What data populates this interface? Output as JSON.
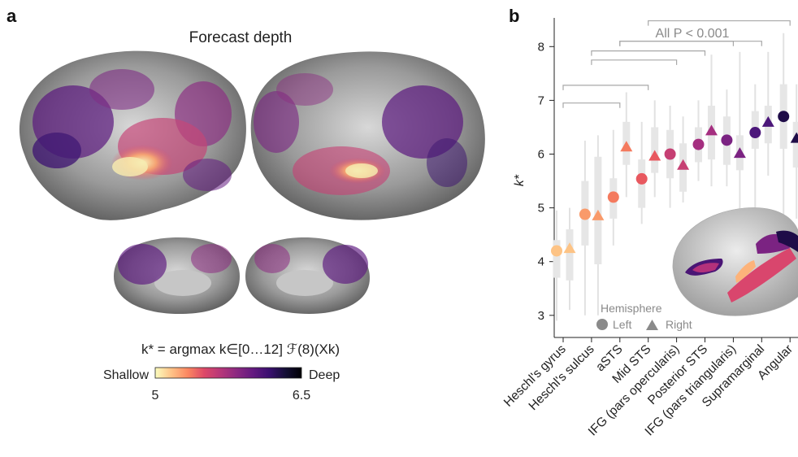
{
  "panel_a": {
    "letter": "a",
    "title": "Forecast depth",
    "formula": "k* = argmax k∈[0…12] ℱ(8)(Xk)",
    "colorbar": {
      "low_label": "Shallow",
      "high_label": "Deep",
      "min": "5",
      "max": "6.5",
      "colormap": [
        "#fcfdbf",
        "#fec287",
        "#fb8761",
        "#de4968",
        "#b73779",
        "#8c2981",
        "#641a80",
        "#3b0f70",
        "#140e36",
        "#000004"
      ]
    }
  },
  "panel_b": {
    "letter": "b",
    "significance_label": "All P < 0.001",
    "legend": {
      "title": "Hemisphere",
      "left_label": "Left",
      "right_label": "Right"
    }
  },
  "chart_data": {
    "type": "scatter",
    "ylabel": "k*",
    "ylim": [
      2.6,
      8.5
    ],
    "yticks": [
      3,
      4,
      5,
      6,
      7,
      8
    ],
    "categories": [
      "Heschl's gyrus",
      "Heschl's sulcus",
      "aSTS",
      "Mid STS",
      "IFG (pars opercularis)",
      "Posterior STS",
      "IFG (pars triangularis)",
      "Supramarginal",
      "Angular"
    ],
    "colors": [
      "#fdc385",
      "#f99a6a",
      "#f47a5e",
      "#e8585f",
      "#c63f73",
      "#a52f80",
      "#7b2382",
      "#4c177a",
      "#1f0c48"
    ],
    "series": [
      {
        "name": "Left",
        "marker": "circle",
        "values": [
          4.2,
          4.88,
          5.2,
          5.54,
          6.0,
          6.18,
          6.26,
          6.4,
          6.7
        ]
      },
      {
        "name": "Right",
        "marker": "triangle",
        "values": [
          4.25,
          4.86,
          6.14,
          5.97,
          5.8,
          6.44,
          6.02,
          6.6,
          6.3
        ]
      }
    ],
    "boxes": {
      "Left": [
        {
          "whisker": [
            2.9,
            4.95
          ],
          "box": [
            3.7,
            4.4
          ]
        },
        {
          "whisker": [
            3.0,
            6.25
          ],
          "box": [
            4.3,
            5.5
          ]
        },
        {
          "whisker": [
            4.3,
            6.45
          ],
          "box": [
            4.8,
            5.55
          ]
        },
        {
          "whisker": [
            4.7,
            6.6
          ],
          "box": [
            5.0,
            5.9
          ]
        },
        {
          "whisker": [
            5.0,
            6.9
          ],
          "box": [
            5.55,
            6.45
          ]
        },
        {
          "whisker": [
            5.5,
            7.0
          ],
          "box": [
            5.85,
            6.5
          ]
        },
        {
          "whisker": [
            5.4,
            7.2
          ],
          "box": [
            5.8,
            6.7
          ]
        },
        {
          "whisker": [
            5.0,
            7.3
          ],
          "box": [
            6.1,
            6.8
          ]
        },
        {
          "whisker": [
            4.2,
            8.25
          ],
          "box": [
            6.1,
            7.3
          ]
        }
      ],
      "Right": [
        {
          "whisker": [
            3.1,
            5.0
          ],
          "box": [
            3.65,
            4.6
          ]
        },
        {
          "whisker": [
            3.0,
            6.35
          ],
          "box": [
            3.95,
            5.95
          ]
        },
        {
          "whisker": [
            5.2,
            7.15
          ],
          "box": [
            5.8,
            6.6
          ]
        },
        {
          "whisker": [
            5.2,
            7.0
          ],
          "box": [
            5.65,
            6.5
          ]
        },
        {
          "whisker": [
            5.1,
            6.7
          ],
          "box": [
            5.3,
            6.2
          ]
        },
        {
          "whisker": [
            5.4,
            7.85
          ],
          "box": [
            5.9,
            6.9
          ]
        },
        {
          "whisker": [
            4.8,
            7.9
          ],
          "box": [
            5.7,
            6.35
          ]
        },
        {
          "whisker": [
            5.6,
            7.9
          ],
          "box": [
            6.2,
            6.9
          ]
        },
        {
          "whisker": [
            4.8,
            7.3
          ],
          "box": [
            5.75,
            6.6
          ]
        }
      ]
    },
    "significance_brackets": [
      {
        "from": "Heschl's gyrus",
        "to": "aSTS",
        "y": 6.95
      },
      {
        "from": "Heschl's gyrus",
        "to": "Mid STS",
        "y": 7.28
      },
      {
        "from": "Heschl's sulcus",
        "to": "IFG (pars opercularis)",
        "y": 7.75
      },
      {
        "from": "Heschl's sulcus",
        "to": "Posterior STS",
        "y": 7.92
      },
      {
        "from": "aSTS",
        "to": "IFG (pars triangularis)",
        "y": 8.1
      },
      {
        "from": "aSTS",
        "to": "Supramarginal",
        "y": 8.1
      },
      {
        "from": "Mid STS",
        "to": "Angular",
        "y": 8.48
      }
    ]
  }
}
